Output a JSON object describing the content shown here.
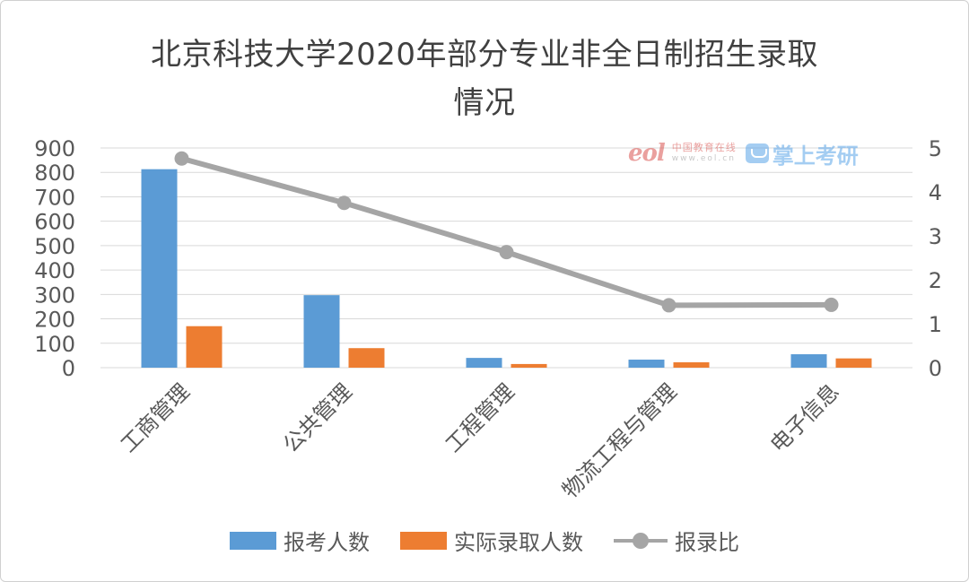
{
  "chart_data": {
    "type": "bar",
    "title": "北京科技大学2020年部分专业非全日制招生录取情况",
    "title_lines": [
      "北京科技大学2020年部分专业非全日制招生录取",
      "情况"
    ],
    "categories": [
      "工商管理",
      "公共管理",
      "工程管理",
      "物流工程与管理",
      "电子信息"
    ],
    "series": [
      {
        "name": "报考人数",
        "type": "bar",
        "axis": "left",
        "color": "#5b9bd5",
        "values": [
          813,
          297,
          40,
          33,
          55
        ]
      },
      {
        "name": "实际录取人数",
        "type": "bar",
        "axis": "left",
        "color": "#ed7d31",
        "values": [
          170,
          80,
          15,
          22,
          38
        ]
      },
      {
        "name": "报录比",
        "type": "line",
        "axis": "right",
        "color": "#a5a5a5",
        "values": [
          4.76,
          3.75,
          2.63,
          1.42,
          1.43
        ]
      }
    ],
    "y_left": {
      "min": 0,
      "max": 900,
      "ticks": [
        "0",
        "100",
        "200",
        "300",
        "400",
        "500",
        "600",
        "700",
        "800",
        "900"
      ]
    },
    "y_right": {
      "min": 0,
      "max": 5,
      "ticks": [
        "0",
        "1",
        "2",
        "3",
        "4",
        "5"
      ]
    },
    "grid": true,
    "legend_position": "bottom"
  },
  "watermark": {
    "logo_text": "eol",
    "site_cn": "中国教育在线",
    "site_url": "www.eol.cn",
    "brand": "掌上考研"
  }
}
